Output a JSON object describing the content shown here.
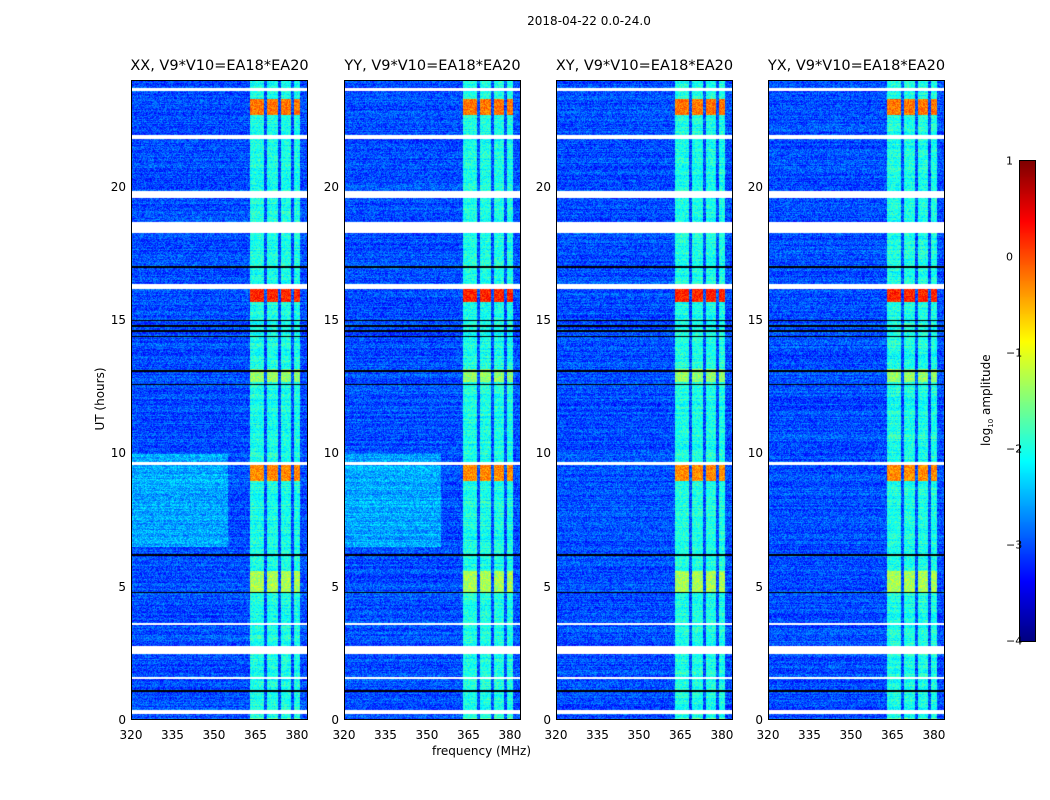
{
  "title": "2018-04-22 0.0-24.0",
  "chart_data": {
    "type": "heatmap",
    "title": "2018-04-22 0.0-24.0",
    "xlabel": "frequency (MHz)",
    "ylabel": "UT (hours)",
    "xlim": [
      320,
      384
    ],
    "ylim": [
      0,
      24
    ],
    "xticks": [
      320,
      335,
      350,
      365,
      380
    ],
    "yticks": [
      0,
      5,
      10,
      15,
      20
    ],
    "panels": [
      {
        "title": "XX, V9*V10=EA18*EA20",
        "left_glow": true
      },
      {
        "title": "YY, V9*V10=EA18*EA20",
        "left_glow": true
      },
      {
        "title": "XY, V9*V10=EA18*EA20",
        "left_glow": false
      },
      {
        "title": "YX, V9*V10=EA18*EA20",
        "left_glow": false
      }
    ],
    "colorbar": {
      "label": "log10 amplitude",
      "label_main": "log",
      "label_sub": "10",
      "label_rest": " amplitude",
      "range": [
        -4,
        1
      ],
      "ticks": [
        1,
        0,
        -1,
        -2,
        -3,
        -4
      ],
      "colormap": "jet"
    },
    "background_level": -3.0,
    "rfi_band_mhz": [
      363,
      381
    ],
    "rfi_subband_gaps_mhz": [
      368.5,
      373.5,
      378.2
    ],
    "rfi_band_level": -2.0,
    "bright_intervals_h": [
      [
        0.0,
        0.1,
        -1.6
      ],
      [
        9.0,
        9.6,
        -0.3
      ],
      [
        15.7,
        16.3,
        0.2
      ],
      [
        22.7,
        23.3,
        -0.2
      ],
      [
        12.7,
        13.2,
        -1.4
      ],
      [
        4.8,
        5.6,
        -1.3
      ]
    ],
    "flagged_intervals_h": [
      [
        0.25,
        0.4
      ],
      [
        1.55,
        1.65
      ],
      [
        2.5,
        2.8
      ],
      [
        3.6,
        3.65
      ],
      [
        9.6,
        9.7
      ],
      [
        16.2,
        16.35
      ],
      [
        18.3,
        18.7
      ],
      [
        19.6,
        19.85
      ],
      [
        21.8,
        21.95
      ],
      [
        23.6,
        23.7
      ]
    ],
    "dark_lines_h": [
      1.1,
      4.8,
      6.2,
      12.6,
      13.1,
      14.4,
      14.6,
      14.8,
      15.0,
      17.0,
      21.9
    ]
  }
}
